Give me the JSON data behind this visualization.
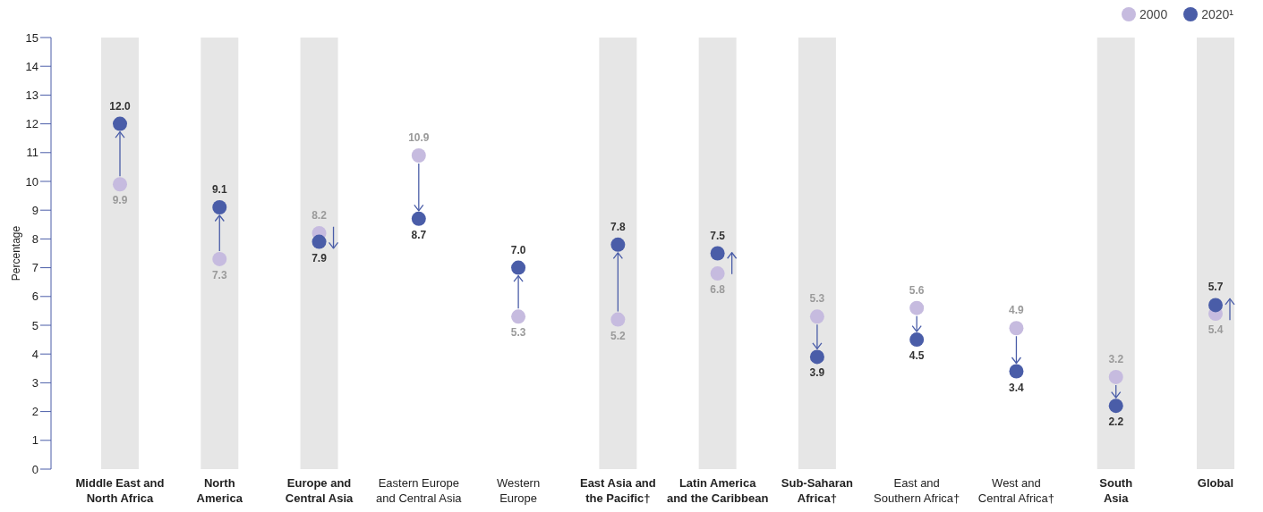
{
  "chart_data": {
    "type": "scatter",
    "ylabel": "Percentage",
    "categories": [
      "Middle East and North Africa",
      "North America",
      "Europe and Central Asia",
      "Eastern Europe and Central Asia",
      "Western Europe",
      "East Asia and the Pacific†",
      "Latin America and the Caribbean",
      "Sub-Saharan Africa†",
      "East and Southern Africa†",
      "West and Central Africa†",
      "South Asia",
      "Global"
    ],
    "series": [
      {
        "name": "2000",
        "color": "#c6bbdf",
        "values": [
          9.9,
          7.3,
          8.2,
          10.9,
          5.3,
          5.2,
          6.8,
          5.3,
          5.6,
          4.9,
          3.2,
          5.4
        ],
        "value_labels": [
          "9.9",
          "7.3",
          "8.2",
          "10.9",
          "5.3",
          "5.2",
          "6.8",
          "5.3",
          "5.6",
          "4.9",
          "3.2",
          "5.4"
        ]
      },
      {
        "name": "2020¹",
        "color": "#4a5da8",
        "values": [
          12.0,
          9.1,
          7.9,
          8.7,
          7.0,
          7.8,
          7.5,
          3.9,
          4.5,
          3.4,
          2.2,
          5.7
        ],
        "value_labels": [
          "12.0",
          "9.1",
          "7.9",
          "8.7",
          "7.0",
          "7.8",
          "7.5",
          "3.9",
          "4.5",
          "3.4",
          "2.2",
          "5.7"
        ]
      }
    ],
    "ylim": [
      0,
      15
    ],
    "yticks": [
      0,
      1,
      2,
      3,
      4,
      5,
      6,
      7,
      8,
      9,
      10,
      11,
      12,
      13,
      14,
      15
    ],
    "bands": [
      {
        "axis": "x",
        "from": "Middle East and North Africa",
        "to": "Middle East and North Africa",
        "color": "#e6e6e6"
      },
      {
        "axis": "x",
        "from": "North America",
        "to": "North America",
        "color": "#e6e6e6"
      },
      {
        "axis": "x",
        "from": "Europe and Central Asia",
        "to": "Europe and Central Asia",
        "color": "#e6e6e6"
      },
      {
        "axis": "x",
        "from": "East Asia and the Pacific†",
        "to": "East Asia and the Pacific†",
        "color": "#e6e6e6"
      },
      {
        "axis": "x",
        "from": "Latin America and the Caribbean",
        "to": "Latin America and the Caribbean",
        "color": "#e6e6e6"
      },
      {
        "axis": "x",
        "from": "Sub-Saharan Africa†",
        "to": "Sub-Saharan Africa†",
        "color": "#e6e6e6"
      },
      {
        "axis": "x",
        "from": "South Asia",
        "to": "South Asia",
        "color": "#e6e6e6"
      },
      {
        "axis": "x",
        "from": "Global",
        "to": "Global",
        "color": "#e6e6e6"
      }
    ],
    "legend": "top right",
    "marker": "circle"
  }
}
